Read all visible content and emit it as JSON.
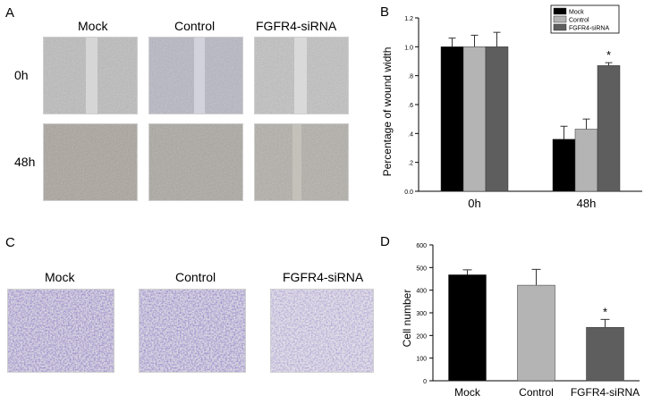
{
  "panel_labels": {
    "a": "A",
    "b": "B",
    "c": "C",
    "d": "D"
  },
  "panel_a": {
    "columns": [
      "Mock",
      "Control",
      "FGFR4-siRNA"
    ],
    "rows": [
      "0h",
      "48h"
    ]
  },
  "panel_c": {
    "columns": [
      "Mock",
      "Control",
      "FGFR4-siRNA"
    ]
  },
  "chart_data": [
    {
      "type": "bar",
      "panel": "B",
      "categories": [
        "0h",
        "48h"
      ],
      "series": [
        {
          "name": "Mock",
          "color": "#000000",
          "values": [
            1.0,
            0.36
          ],
          "errors": [
            0.06,
            0.09
          ]
        },
        {
          "name": "Control",
          "color": "#b4b4b4",
          "values": [
            1.0,
            0.43
          ],
          "errors": [
            0.08,
            0.07
          ]
        },
        {
          "name": "FGFR4-siRNA",
          "color": "#5e5e5e",
          "values": [
            1.0,
            0.87
          ],
          "errors": [
            0.1,
            0.02
          ]
        }
      ],
      "ylabel": "Percentage of wound width",
      "ylim": [
        0,
        1.2
      ],
      "yticks": [
        "0.0",
        ".2",
        ".4",
        ".6",
        ".8",
        "1.0",
        "1.2"
      ],
      "annotations": [
        {
          "category": "48h",
          "series": "FGFR4-siRNA",
          "text": "*"
        }
      ],
      "legend": "top-right"
    },
    {
      "type": "bar",
      "panel": "D",
      "categories": [
        "Mock",
        "Control",
        "FGFR4-siRNA"
      ],
      "values": [
        468,
        422,
        236
      ],
      "errors": [
        22,
        70,
        35
      ],
      "colors": [
        "#000000",
        "#b4b4b4",
        "#5e5e5e"
      ],
      "ylabel": "Cell number",
      "ylim": [
        0,
        600
      ],
      "yticks": [
        "0",
        "100",
        "200",
        "300",
        "400",
        "500",
        "600"
      ],
      "annotations": [
        {
          "category": "FGFR4-siRNA",
          "text": "*"
        }
      ]
    }
  ]
}
